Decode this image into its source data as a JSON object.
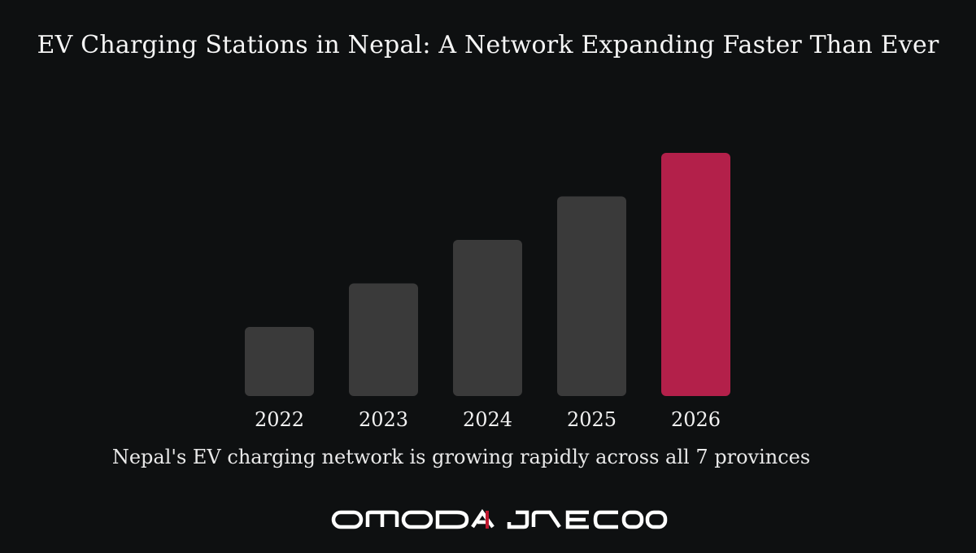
{
  "header": {
    "title": "EV Charging Stations in Nepal: A Network Expanding Faster Than Ever"
  },
  "chart_data": {
    "type": "bar",
    "title": "",
    "categories": [
      "2022",
      "2023",
      "2024",
      "2025",
      "2026"
    ],
    "values": [
      1,
      2,
      3,
      4,
      5
    ],
    "xlabel": "",
    "ylabel": "",
    "grid": false,
    "legend": "none",
    "highlight_index": 4,
    "colors": {
      "bar": "#3a3a3a",
      "highlight": "#b3204a",
      "label": "#f2f2f2"
    }
  },
  "footer": {
    "caption": "Nepal's EV charging network is growing rapidly across all 7 provinces",
    "logo_left": "OMODA",
    "logo_right": "JAECOO",
    "logo_separator_color": "#c0182f"
  }
}
